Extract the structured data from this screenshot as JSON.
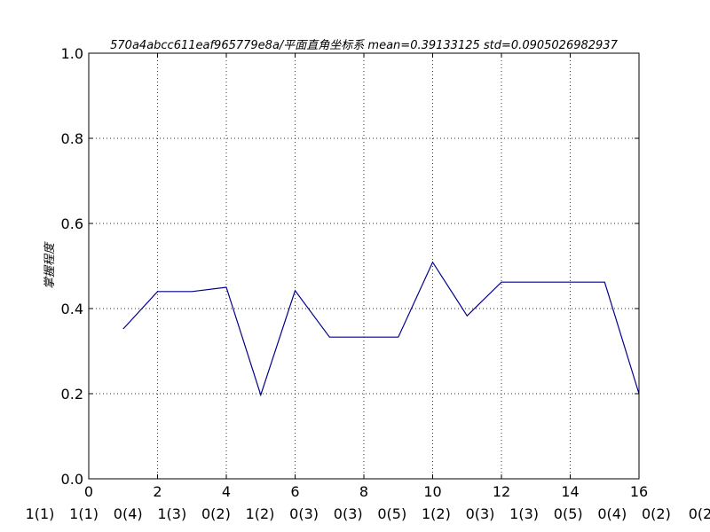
{
  "chart_data": {
    "type": "line",
    "title": "570a4abcc611eaf965779e8a/平面直角坐标系  mean=0.39133125 std=0.0905026982937",
    "xlabel": "",
    "ylabel": "掌握程度",
    "xlim": [
      0,
      16
    ],
    "ylim": [
      0,
      1.0
    ],
    "xticks": [
      0,
      2,
      4,
      6,
      8,
      10,
      12,
      14,
      16
    ],
    "yticks": [
      0.0,
      0.2,
      0.4,
      0.6,
      0.8,
      1.0
    ],
    "xtick_labels": [
      "0",
      "2",
      "4",
      "6",
      "8",
      "10",
      "12",
      "14",
      "16"
    ],
    "ytick_labels": [
      "0.0",
      "0.2",
      "0.4",
      "0.6",
      "0.8",
      "1.0"
    ],
    "grid": true,
    "category_labels": [
      "1(1)",
      "1(1)",
      "0(4)",
      "1(3)",
      "0(2)",
      "1(2)",
      "0(3)",
      "0(3)",
      "0(5)",
      "1(2)",
      "0(3)",
      "1(3)",
      "0(5)",
      "0(4)",
      "0(2)",
      "0(2"
    ],
    "series": [
      {
        "x": [
          1,
          2,
          3,
          4,
          5,
          6,
          7,
          8,
          9,
          10,
          11,
          12,
          13,
          14,
          15,
          16
        ],
        "values": [
          0.352,
          0.44,
          0.44,
          0.45,
          0.197,
          0.442,
          0.333,
          0.333,
          0.333,
          0.509,
          0.383,
          0.462,
          0.462,
          0.462,
          0.462,
          0.2
        ]
      }
    ],
    "colors": {
      "line": "#00008b"
    }
  }
}
